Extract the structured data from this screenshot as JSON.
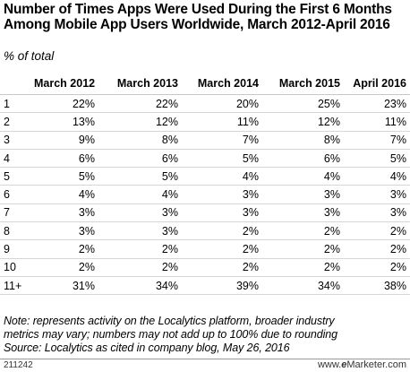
{
  "title": "Number of Times Apps Were Used During the First 6 Months Among Mobile App Users Worldwide, March 2012-April 2016",
  "subtitle": "% of total",
  "chart_data": {
    "type": "table",
    "columns": [
      "March 2012",
      "March 2013",
      "March 2014",
      "March 2015",
      "April 2016"
    ],
    "rows": [
      {
        "label": "1",
        "values": [
          "22%",
          "22%",
          "20%",
          "25%",
          "23%"
        ]
      },
      {
        "label": "2",
        "values": [
          "13%",
          "12%",
          "11%",
          "12%",
          "11%"
        ]
      },
      {
        "label": "3",
        "values": [
          "9%",
          "8%",
          "7%",
          "8%",
          "7%"
        ]
      },
      {
        "label": "4",
        "values": [
          "6%",
          "6%",
          "5%",
          "6%",
          "5%"
        ]
      },
      {
        "label": "5",
        "values": [
          "5%",
          "5%",
          "4%",
          "4%",
          "4%"
        ]
      },
      {
        "label": "6",
        "values": [
          "4%",
          "4%",
          "3%",
          "3%",
          "3%"
        ]
      },
      {
        "label": "7",
        "values": [
          "3%",
          "3%",
          "3%",
          "3%",
          "3%"
        ]
      },
      {
        "label": "8",
        "values": [
          "3%",
          "3%",
          "2%",
          "2%",
          "2%"
        ]
      },
      {
        "label": "9",
        "values": [
          "2%",
          "2%",
          "2%",
          "2%",
          "2%"
        ]
      },
      {
        "label": "10",
        "values": [
          "2%",
          "2%",
          "2%",
          "2%",
          "2%"
        ]
      },
      {
        "label": "11+",
        "values": [
          "31%",
          "34%",
          "39%",
          "34%",
          "38%"
        ]
      }
    ]
  },
  "notes": {
    "line1": "Note: represents activity on the Localytics platform, broader industry",
    "line2": "metrics may vary; numbers may not add up to 100% due to rounding",
    "line3": "Source: Localytics as cited in company blog, May 26, 2016"
  },
  "footer": {
    "id": "211242",
    "brand_url": "www.",
    "brand_e": "e",
    "brand_rest": "Marketer.com"
  }
}
